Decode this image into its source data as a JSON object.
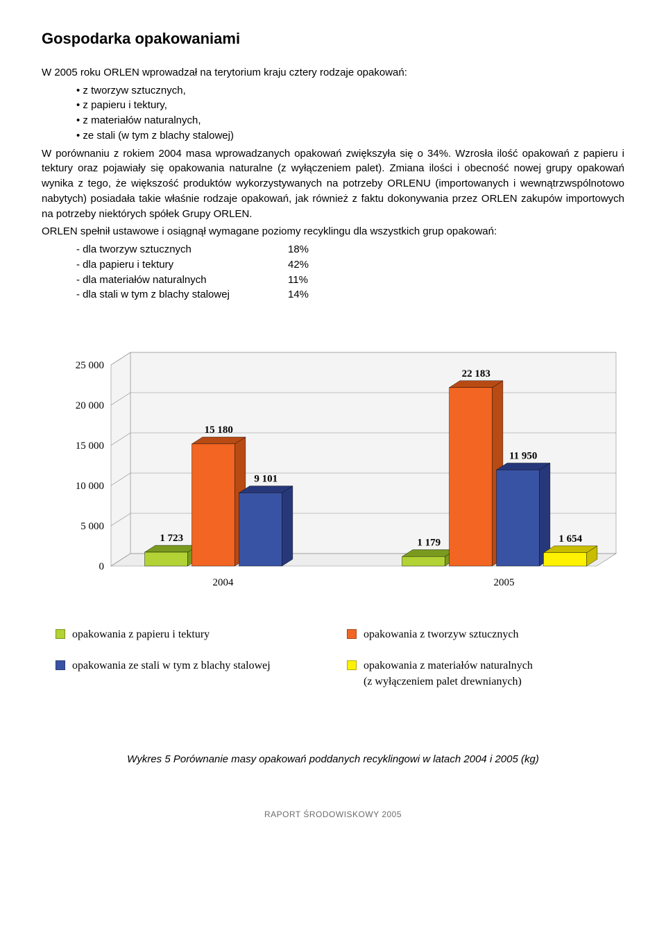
{
  "heading": "Gospodarka opakowaniami",
  "intro": "W 2005 roku ORLEN wprowadzał na terytorium kraju cztery rodzaje opakowań:",
  "bullets": [
    "z tworzyw sztucznych,",
    "z papieru i tektury,",
    "z materiałów naturalnych,",
    "ze stali (w tym z blachy stalowej)"
  ],
  "para1": "W porównaniu z rokiem 2004 masa wprowadzanych opakowań zwiększyła się o 34%. Wzrosła ilość opakowań z papieru i tektury oraz pojawiały się opakowania naturalne (z wyłączeniem palet). Zmiana ilości i obecność nowej grupy opakowań wynika z tego, że większość produktów wykorzystywanych na potrzeby ORLENU (importowanych i wewnątrzwspólnotowo nabytych) posiadała takie właśnie rodzaje opakowań, jak również z faktu dokonywania przez ORLEN zakupów importowych na potrzeby niektórych spółek Grupy ORLEN.",
  "para2": "ORLEN spełnił ustawowe i osiągnął wymagane poziomy recyklingu dla wszystkich grup opakowań:",
  "recycling": [
    {
      "label": "- dla tworzyw sztucznych",
      "value": "18%"
    },
    {
      "label": "- dla papieru i tektury",
      "value": "42%"
    },
    {
      "label": "- dla materiałów naturalnych",
      "value": "11%"
    },
    {
      "label": "- dla stali w tym z blachy stalowej",
      "value": "14%"
    }
  ],
  "chart": {
    "type": "bar-3d-grouped",
    "categories": [
      "2004",
      "2005"
    ],
    "series": [
      {
        "key": "papier",
        "label": "opakowania z papieru i tektury",
        "color": "#b2d235",
        "edge": "#7a9a1f"
      },
      {
        "key": "tworzywa",
        "label": "opakowania z tworzyw sztucznych",
        "color": "#f26522",
        "edge": "#b84a14"
      },
      {
        "key": "stal",
        "label": "opakowania ze stali w tym z blachy stalowej",
        "color": "#3953a4",
        "edge": "#27387a"
      },
      {
        "key": "naturalne",
        "label": "opakowania z materiałów naturalnych\n(z wyłączeniem palet drewnianych)",
        "color": "#fff200",
        "edge": "#c9bd00"
      }
    ],
    "data": {
      "2004": {
        "papier": 1723,
        "tworzywa": 15180,
        "stal": 9101,
        "naturalne": 0
      },
      "2005": {
        "papier": 1179,
        "tworzywa": 22183,
        "stal": 11950,
        "naturalne": 1654
      }
    },
    "value_labels": {
      "2004": {
        "papier": "1 723",
        "tworzywa": "15 180",
        "stal": "9 101"
      },
      "2005": {
        "papier": "1 179",
        "tworzywa": "22 183",
        "stal": "11 950",
        "naturalne": "1 654"
      }
    },
    "y_ticks": [
      0,
      5000,
      10000,
      15000,
      20000,
      25000
    ],
    "y_tick_labels": [
      "0",
      "5 000",
      "10 000",
      "15 000",
      "20 000",
      "25 000"
    ],
    "ylim": [
      0,
      25000
    ],
    "label_font": "Times New Roman, serif",
    "label_fontsize": 15,
    "axis_fontsize": 15,
    "background": "#ffffff",
    "floor_color": "#ededed",
    "wall_color": "#f4f4f4",
    "grid_color": "#8a8a8a"
  },
  "caption": "Wykres 5 Porównanie masy opakowań poddanych recyklingowi w latach 2004 i 2005 (kg)",
  "footer": "RAPORT ŚRODOWISKOWY 2005"
}
